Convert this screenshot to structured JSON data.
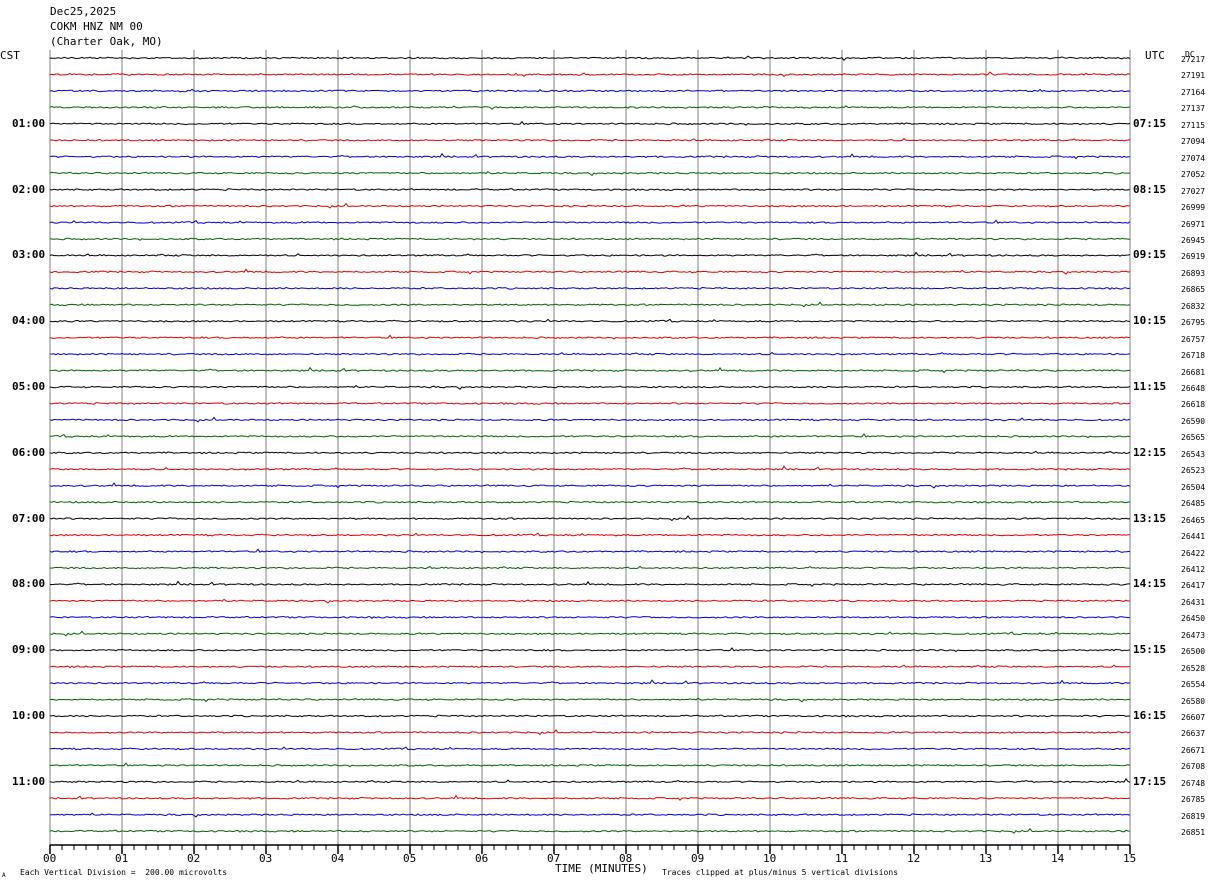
{
  "header": {
    "date": "Dec25,2025",
    "station": "COKM HNZ NM 00",
    "location": "(Charter Oak, MO)"
  },
  "labels": {
    "left_tz": "CST",
    "right_tz": "UTC",
    "dc_header": "DC"
  },
  "footer": {
    "scale_note": "Each Vertical Division =  200.00 microvolts",
    "clip_note": "Traces clipped at plus/minus 5 vertical divisions",
    "corner_mark": "A"
  },
  "chart_data": {
    "type": "line",
    "xlabel": "TIME (MINUTES)",
    "xlim": [
      0,
      15
    ],
    "x_ticks": [
      "00",
      "01",
      "02",
      "03",
      "04",
      "05",
      "06",
      "07",
      "08",
      "09",
      "10",
      "11",
      "12",
      "13",
      "14",
      "15"
    ],
    "trace_colors": [
      "#000000",
      "#e00000",
      "#0000d0",
      "#006400"
    ],
    "left_time_labels": [
      "01:00",
      "02:00",
      "03:00",
      "04:00",
      "05:00",
      "06:00",
      "07:00",
      "08:00",
      "09:00",
      "10:00",
      "11:00"
    ],
    "right_time_labels": [
      "07:15",
      "08:15",
      "09:15",
      "10:15",
      "11:15",
      "12:15",
      "13:15",
      "14:15",
      "15:15",
      "16:15",
      "17:15"
    ],
    "dc_offsets": [
      27217,
      27191,
      27164,
      27137,
      27115,
      27094,
      27074,
      27052,
      27027,
      26999,
      26971,
      26945,
      26919,
      26893,
      26865,
      26832,
      26795,
      26757,
      26718,
      26681,
      26648,
      26618,
      26590,
      26565,
      26543,
      26523,
      26504,
      26485,
      26465,
      26441,
      26422,
      26412,
      26417,
      26431,
      26450,
      26473,
      26500,
      26528,
      26554,
      26580,
      26607,
      26637,
      26671,
      26708,
      26748,
      26785,
      26819,
      26851
    ]
  }
}
